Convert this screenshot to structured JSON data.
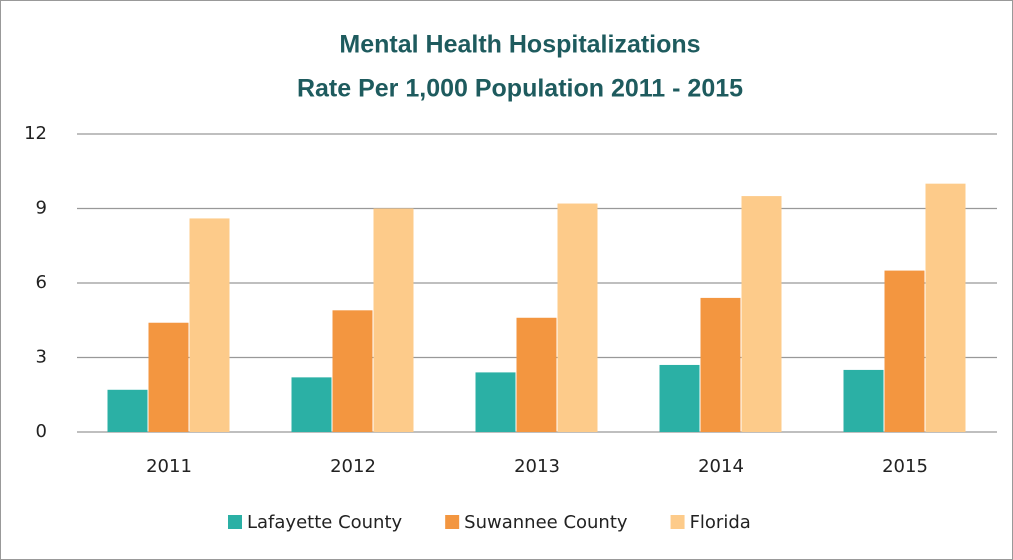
{
  "chart_data": {
    "type": "bar",
    "title": [
      "Mental Health Hospitalizations",
      "Rate Per 1,000 Population 2011 - 2015"
    ],
    "categories": [
      "2011",
      "2012",
      "2013",
      "2014",
      "2015"
    ],
    "series": [
      {
        "name": "Lafayette County",
        "color": "#2bb0a5",
        "values": [
          1.7,
          2.2,
          2.4,
          2.7,
          2.5
        ]
      },
      {
        "name": "Suwannee County",
        "color": "#f39640",
        "values": [
          4.4,
          4.9,
          4.6,
          5.4,
          6.5
        ]
      },
      {
        "name": "Florida",
        "color": "#fdcb8a",
        "values": [
          8.6,
          9.0,
          9.2,
          9.5,
          10.0
        ]
      }
    ],
    "ylim": [
      0,
      12
    ],
    "yticks": [
      0,
      3,
      6,
      9,
      12
    ],
    "grid": true,
    "legend": "bottom"
  }
}
